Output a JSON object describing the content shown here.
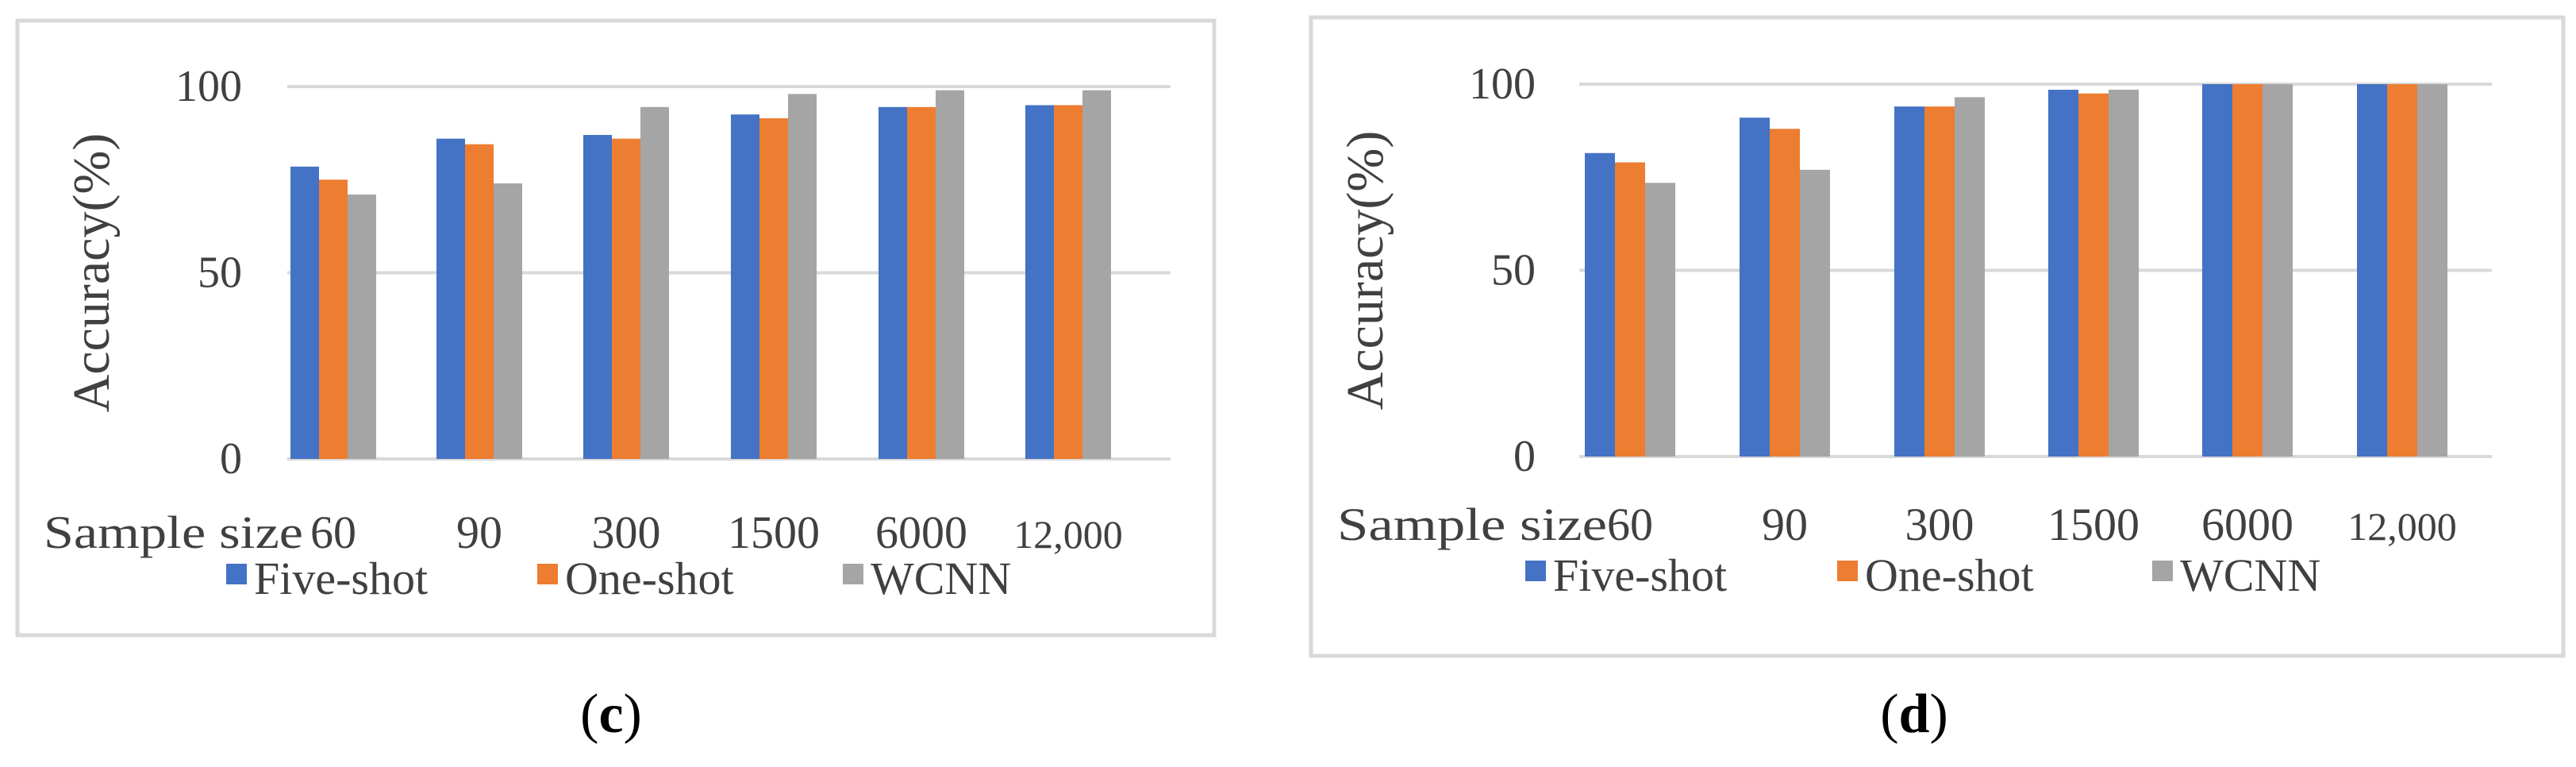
{
  "colors": {
    "Five-shot": "#4472C4",
    "One-shot": "#ED7D31",
    "WCNN": "#A5A5A5",
    "gridline": "#D9D9D9",
    "frame": "#D9D9D9"
  },
  "chart_data": [
    {
      "type": "bar",
      "panel_label": "c",
      "title": "",
      "xlabel": "Sample size",
      "ylabel": "Accuracy(%)",
      "ylim": [
        0,
        100
      ],
      "yticks": [
        "0",
        "50",
        "100"
      ],
      "grid": true,
      "legend_position": "bottom",
      "categories": [
        "60",
        "90",
        "300",
        "1500",
        "6000",
        "12,000"
      ],
      "series": [
        {
          "name": "Five-shot",
          "values": [
            78.5,
            86,
            87,
            92.5,
            94.5,
            95
          ]
        },
        {
          "name": "One-shot",
          "values": [
            75,
            84.5,
            86,
            91.5,
            94.5,
            95
          ]
        },
        {
          "name": "WCNN",
          "values": [
            71,
            74,
            94.5,
            98,
            99,
            99
          ]
        }
      ]
    },
    {
      "type": "bar",
      "panel_label": "d",
      "title": "",
      "xlabel": "Sample size",
      "ylabel": "Accuracy(%)",
      "ylim": [
        0,
        100
      ],
      "yticks": [
        "0",
        "50",
        "100"
      ],
      "grid": true,
      "legend_position": "bottom",
      "categories": [
        "60",
        "90",
        "300",
        "1500",
        "6000",
        "12,000"
      ],
      "series": [
        {
          "name": "Five-shot",
          "values": [
            81.5,
            91,
            94,
            98.5,
            100,
            100
          ]
        },
        {
          "name": "One-shot",
          "values": [
            79,
            88,
            94,
            97.5,
            100,
            100
          ]
        },
        {
          "name": "WCNN",
          "values": [
            73.5,
            77,
            96.5,
            98.5,
            100,
            100
          ]
        }
      ]
    }
  ]
}
